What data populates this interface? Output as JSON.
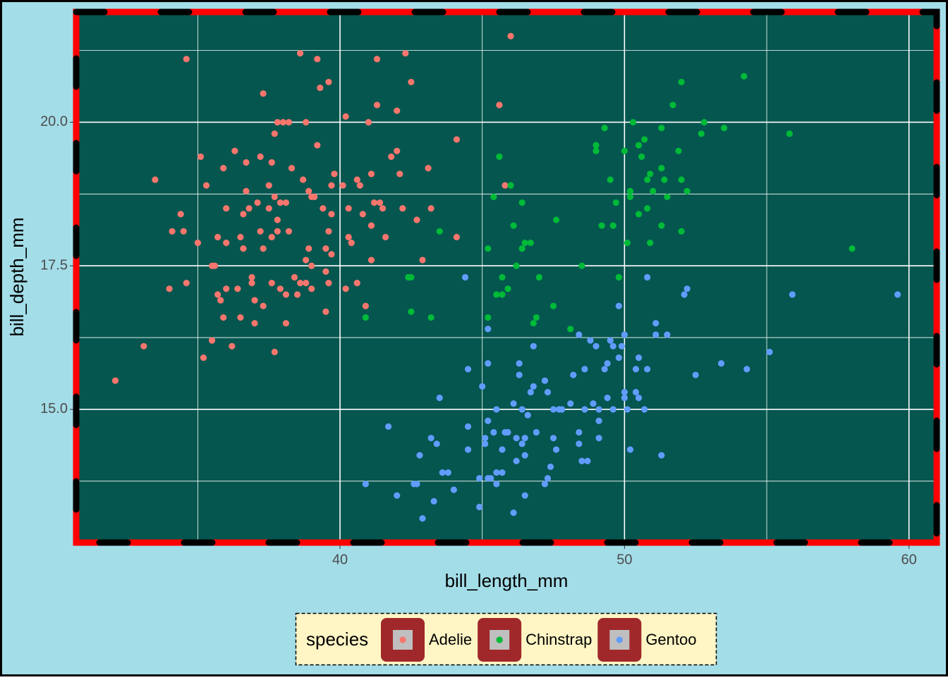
{
  "chart_data": {
    "type": "scatter",
    "x_label": "bill_length_mm",
    "y_label": "bill_depth_mm",
    "xlim": [
      30.725,
      60.975
    ],
    "ylim": [
      12.68,
      21.92
    ],
    "xticks": [
      40,
      50,
      60
    ],
    "yticks": [
      {
        "value": 15,
        "label": "15.0"
      },
      17.5,
      {
        "value": 20,
        "label": "20.0"
      }
    ],
    "grid": true,
    "legend_position": "bottom",
    "legend_title": "species",
    "series": [
      {
        "name": "Adelie",
        "color": "#f8766d",
        "x": [
          32.1,
          33.1,
          33.5,
          34.6,
          34.0,
          34.1,
          34.4,
          34.5,
          34.6,
          35.0,
          35.1,
          35.2,
          35.3,
          35.5,
          35.5,
          35.6,
          35.7,
          35.7,
          35.8,
          35.9,
          35.9,
          36.0,
          36.0,
          36.0,
          36.2,
          36.3,
          36.4,
          36.5,
          36.5,
          36.6,
          36.6,
          36.7,
          36.7,
          36.8,
          36.9,
          36.9,
          37.0,
          37.0,
          37.1,
          37.2,
          37.2,
          37.3,
          37.3,
          37.3,
          37.5,
          37.5,
          37.6,
          37.6,
          37.6,
          37.7,
          37.7,
          37.7,
          37.8,
          37.8,
          37.8,
          37.9,
          37.9,
          38.0,
          38.1,
          38.1,
          38.1,
          38.2,
          38.2,
          38.3,
          38.4,
          38.5,
          38.6,
          38.6,
          38.7,
          38.8,
          38.8,
          38.8,
          38.9,
          38.9,
          39.0,
          39.0,
          39.0,
          39.1,
          39.2,
          39.2,
          39.3,
          39.4,
          39.5,
          39.5,
          39.5,
          39.6,
          39.6,
          39.6,
          39.7,
          39.7,
          39.7,
          39.8,
          40.1,
          40.2,
          40.2,
          40.3,
          40.3,
          40.4,
          40.6,
          40.6,
          40.7,
          40.8,
          40.9,
          41.0,
          41.1,
          41.1,
          41.1,
          41.2,
          41.3,
          41.3,
          41.4,
          41.5,
          41.6,
          41.8,
          42.0,
          42.0,
          42.1,
          42.2,
          42.3,
          42.5,
          42.7,
          42.9,
          43.1,
          43.2,
          44.1,
          44.1,
          45.6,
          45.8,
          46.0
        ],
        "values": [
          15.5,
          16.1,
          19.0,
          21.1,
          17.1,
          18.1,
          18.4,
          18.1,
          17.2,
          17.9,
          19.4,
          15.9,
          18.9,
          16.2,
          17.5,
          17.5,
          17.0,
          18.0,
          16.9,
          16.6,
          19.2,
          17.9,
          18.5,
          17.1,
          16.1,
          19.5,
          17.1,
          16.6,
          18.0,
          17.8,
          18.4,
          19.3,
          18.8,
          18.5,
          17.3,
          17.2,
          16.5,
          16.9,
          18.6,
          19.4,
          18.1,
          20.5,
          17.8,
          16.8,
          18.9,
          18.5,
          19.3,
          18.0,
          17.2,
          19.8,
          18.7,
          16.0,
          20.0,
          18.3,
          18.1,
          18.6,
          17.1,
          20.0,
          18.6,
          17.0,
          16.5,
          20.0,
          18.1,
          19.2,
          17.3,
          17.0,
          17.2,
          21.2,
          19.0,
          20.0,
          17.2,
          17.6,
          18.8,
          17.8,
          18.7,
          17.5,
          17.1,
          18.7,
          21.1,
          19.6,
          20.6,
          18.5,
          17.4,
          16.7,
          17.8,
          20.7,
          18.1,
          17.2,
          18.4,
          18.9,
          17.7,
          19.1,
          18.9,
          20.1,
          17.1,
          18.5,
          18.0,
          17.9,
          19.0,
          17.2,
          18.9,
          18.4,
          16.8,
          20.0,
          19.1,
          18.2,
          17.6,
          18.6,
          21.1,
          20.3,
          18.6,
          18.5,
          18.0,
          19.4,
          20.2,
          19.5,
          19.1,
          18.5,
          21.2,
          20.7,
          18.3,
          17.6,
          19.2,
          18.5,
          19.7,
          18.0,
          20.3,
          18.9,
          21.5
        ]
      },
      {
        "name": "Chinstrap",
        "color": "#00ba38",
        "x": [
          40.9,
          42.4,
          42.5,
          42.5,
          43.2,
          43.5,
          45.2,
          45.2,
          45.4,
          45.5,
          45.6,
          45.7,
          45.7,
          45.9,
          46.0,
          46.1,
          46.2,
          46.4,
          46.4,
          46.5,
          46.7,
          46.8,
          46.9,
          47.0,
          47.6,
          47.5,
          48.1,
          48.5,
          49.0,
          49.0,
          49.2,
          49.3,
          49.5,
          49.6,
          49.7,
          49.8,
          50.0,
          50.1,
          50.2,
          50.2,
          50.3,
          50.5,
          50.5,
          50.6,
          50.7,
          50.8,
          50.8,
          50.9,
          50.9,
          51.0,
          51.3,
          51.3,
          51.3,
          51.4,
          51.5,
          51.7,
          51.9,
          52.0,
          52.0,
          52.0,
          52.2,
          52.7,
          52.8,
          53.5,
          54.2,
          55.8,
          58.0
        ],
        "values": [
          16.6,
          17.3,
          17.3,
          16.7,
          16.6,
          18.1,
          17.8,
          16.6,
          18.7,
          17.0,
          19.4,
          17.3,
          17.0,
          17.1,
          18.9,
          18.2,
          17.5,
          18.6,
          17.8,
          17.9,
          17.9,
          16.5,
          16.6,
          17.3,
          18.3,
          16.8,
          16.4,
          17.5,
          19.6,
          19.5,
          18.2,
          19.9,
          19.0,
          18.2,
          18.6,
          17.3,
          19.5,
          17.9,
          18.8,
          18.7,
          20.0,
          19.6,
          18.4,
          19.4,
          19.7,
          19.0,
          18.5,
          19.1,
          17.9,
          18.8,
          19.9,
          19.2,
          18.2,
          19.0,
          18.7,
          20.3,
          19.5,
          20.7,
          19.0,
          18.1,
          18.8,
          19.8,
          20.0,
          19.9,
          20.8,
          19.8,
          17.8
        ]
      },
      {
        "name": "Gentoo",
        "color": "#619cff",
        "x": [
          40.9,
          41.7,
          42.0,
          42.6,
          42.7,
          42.8,
          42.9,
          43.2,
          43.3,
          43.4,
          43.5,
          43.6,
          43.8,
          44.0,
          44.4,
          44.5,
          44.5,
          44.5,
          44.9,
          44.9,
          45.0,
          45.1,
          45.1,
          45.2,
          45.2,
          45.2,
          45.2,
          45.3,
          45.4,
          45.5,
          45.5,
          45.5,
          45.7,
          45.7,
          45.8,
          45.9,
          46.1,
          46.1,
          46.2,
          46.2,
          46.3,
          46.3,
          46.4,
          46.4,
          46.5,
          46.5,
          46.5,
          46.6,
          46.7,
          46.8,
          46.8,
          46.9,
          47.2,
          47.2,
          47.3,
          47.3,
          47.4,
          47.5,
          47.5,
          47.6,
          47.7,
          47.8,
          48.1,
          48.2,
          48.4,
          48.4,
          48.4,
          48.5,
          48.6,
          48.6,
          48.7,
          48.8,
          48.9,
          49.0,
          49.1,
          49.1,
          49.1,
          49.3,
          49.4,
          49.4,
          49.5,
          49.6,
          49.6,
          49.8,
          49.8,
          49.9,
          50.0,
          50.0,
          50.0,
          50.1,
          50.2,
          50.4,
          50.4,
          50.5,
          50.5,
          50.7,
          50.8,
          50.8,
          51.1,
          51.1,
          51.3,
          51.5,
          52.1,
          52.2,
          52.5,
          53.4,
          54.3,
          55.1,
          55.9,
          59.6
        ],
        "values": [
          13.7,
          14.7,
          13.5,
          13.7,
          13.7,
          14.2,
          13.1,
          14.5,
          13.4,
          14.4,
          15.2,
          13.9,
          13.9,
          13.6,
          17.3,
          14.7,
          14.3,
          15.7,
          13.3,
          13.8,
          15.4,
          14.5,
          14.4,
          13.8,
          14.8,
          15.8,
          16.4,
          13.8,
          14.6,
          13.9,
          13.7,
          15.0,
          13.9,
          14.3,
          14.6,
          14.6,
          15.1,
          13.2,
          14.5,
          14.1,
          15.8,
          15.6,
          15.0,
          14.4,
          13.5,
          14.5,
          14.2,
          14.9,
          15.3,
          16.1,
          15.4,
          14.6,
          15.5,
          13.7,
          15.3,
          13.8,
          14.0,
          15.0,
          14.5,
          14.3,
          15.0,
          15.0,
          15.1,
          15.6,
          14.4,
          16.3,
          14.6,
          14.1,
          15.7,
          15.0,
          14.1,
          16.2,
          15.1,
          16.1,
          15.0,
          14.8,
          14.5,
          15.7,
          15.8,
          15.2,
          16.2,
          16.1,
          15.0,
          15.9,
          16.8,
          16.1,
          16.3,
          15.2,
          15.3,
          15.0,
          14.3,
          15.7,
          15.3,
          15.9,
          15.2,
          15.0,
          17.3,
          15.7,
          16.5,
          16.3,
          14.2,
          16.3,
          17.0,
          17.1,
          15.6,
          15.8,
          15.7,
          16.0,
          17.0,
          17.0
        ]
      }
    ]
  }
}
